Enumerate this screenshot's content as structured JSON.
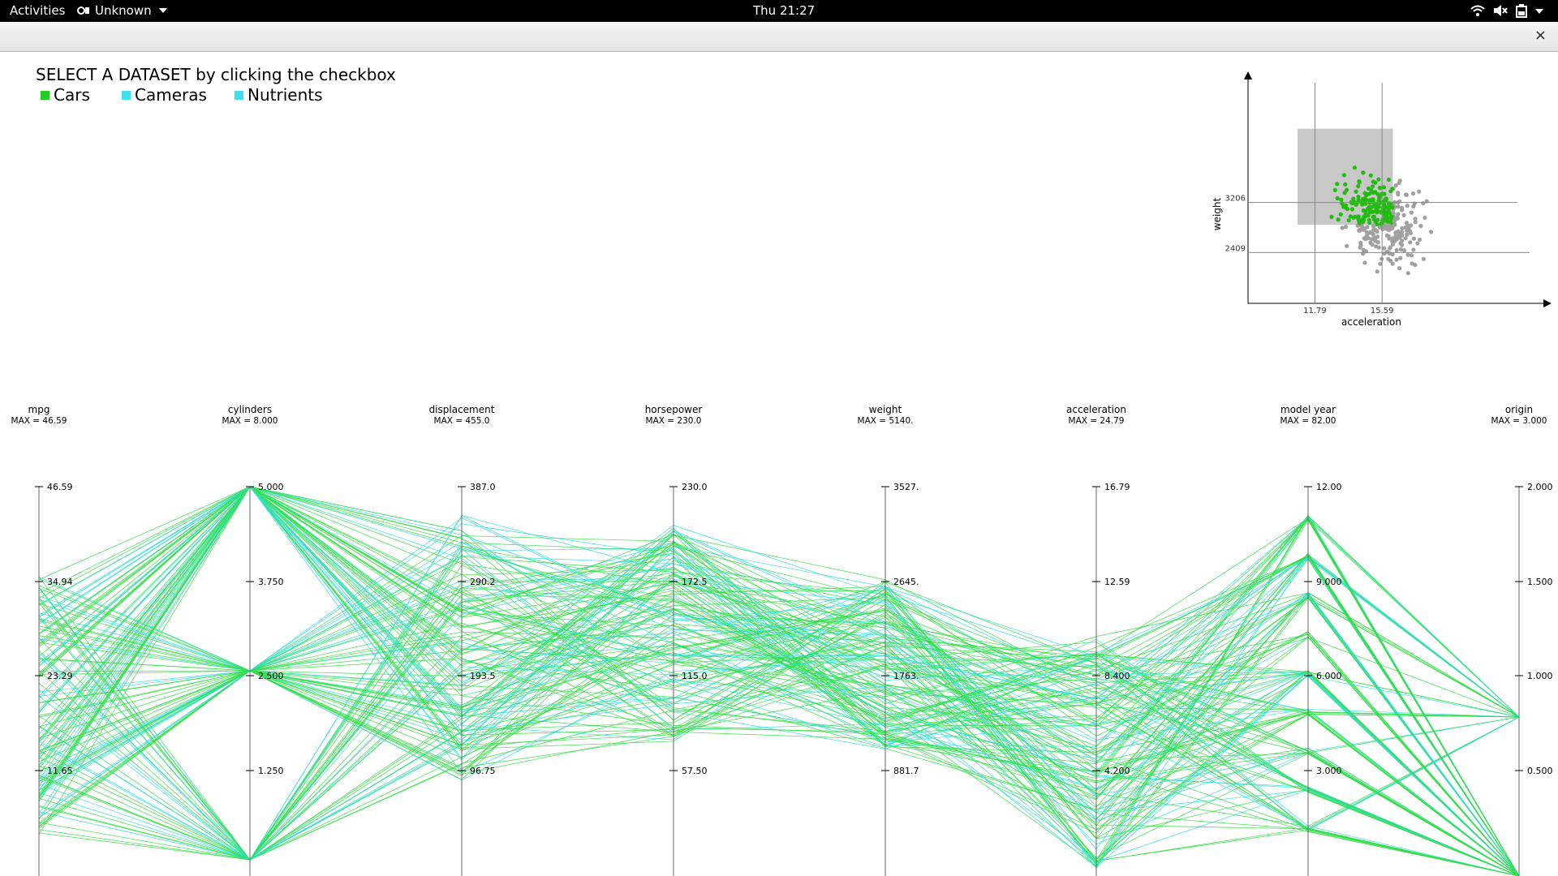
{
  "topbar": {
    "activities": "Activities",
    "app_name": "Unknown",
    "clock": "Thu 21:27",
    "icons": [
      "wifi-icon",
      "volume-muted-icon",
      "battery-icon",
      "chevron-down-icon"
    ]
  },
  "window": {
    "close_icon": "close-icon",
    "close_glyph": "×"
  },
  "header": {
    "title": "SELECT A DATASET by clicking the checkbox",
    "datasets": [
      {
        "label": "Cars",
        "color": "#22cc22"
      },
      {
        "label": "Cameras",
        "color": "#44ddee"
      },
      {
        "label": "Nutrients",
        "color": "#44ddee"
      }
    ]
  },
  "colors": {
    "cars_line": "#33dd44",
    "alt_line": "#33dddd",
    "point": "#a0a0a0",
    "selected_point": "#22bb11",
    "brush": "#c8c8c8"
  },
  "chart_data": [
    {
      "type": "scatter",
      "xlabel": "acceleration",
      "ylabel": "weight",
      "x_ref_ticks": [
        "11.79",
        "15.59"
      ],
      "y_ref_ticks": [
        "3206",
        "2409"
      ],
      "xlim": [
        8,
        25
      ],
      "ylim": [
        1600,
        5150
      ],
      "brush": {
        "x": [
          10.8,
          16.2
        ],
        "y": [
          2850,
          4380
        ]
      }
    },
    {
      "type": "parallel_coordinates",
      "axes": [
        {
          "name": "mpg",
          "max_label": "MAX = 46.59",
          "ticks": [
            "46.59",
            "34.94",
            "23.29",
            "11.65"
          ]
        },
        {
          "name": "cylinders",
          "max_label": "MAX = 8.000",
          "ticks": [
            "5.000",
            "3.750",
            "2.500",
            "1.250"
          ]
        },
        {
          "name": "displacement",
          "max_label": "MAX = 455.0",
          "ticks": [
            "387.0",
            "290.2",
            "193.5",
            "96.75"
          ]
        },
        {
          "name": "horsepower",
          "max_label": "MAX = 230.0",
          "ticks": [
            "230.0",
            "172.5",
            "115.0",
            "57.50"
          ]
        },
        {
          "name": "weight",
          "max_label": "MAX = 5140.",
          "ticks": [
            "3527.",
            "2645.",
            "1763.",
            "881.7"
          ]
        },
        {
          "name": "acceleration",
          "max_label": "MAX = 24.79",
          "ticks": [
            "16.79",
            "12.59",
            "8.400",
            "4.200"
          ]
        },
        {
          "name": "model year",
          "max_label": "MAX = 82.00",
          "ticks": [
            "12.00",
            "9.000",
            "6.000",
            "3.000"
          ]
        },
        {
          "name": "origin",
          "max_label": "MAX = 3.000",
          "ticks": [
            "2.000",
            "1.500",
            "1.000",
            "0.500"
          ]
        }
      ]
    }
  ]
}
